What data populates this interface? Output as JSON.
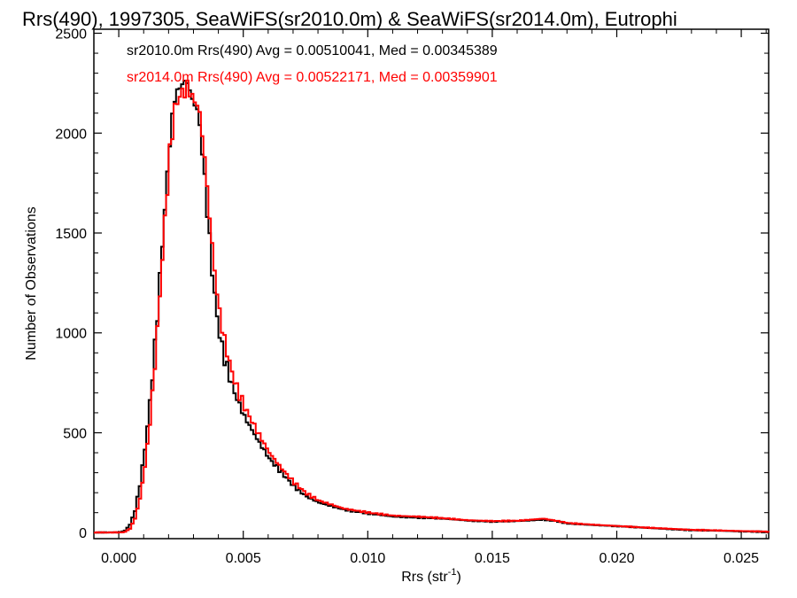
{
  "chart_data": {
    "type": "line",
    "title": "Rrs(490), 1997305, SeaWiFS(sr2010.0m) & SeaWiFS(sr2014.0m), Eutrophi",
    "xlabel": "Rrs (str",
    "xlabel_sup": "-1",
    "xlabel_tail": ")",
    "ylabel": "Number of Observations",
    "xlim": [
      -0.001,
      0.0261
    ],
    "ylim": [
      -30,
      2520
    ],
    "xticks": [
      0.0,
      0.005,
      0.01,
      0.015,
      0.02,
      0.025
    ],
    "xtick_labels": [
      "0.000",
      "0.005",
      "0.010",
      "0.015",
      "0.020",
      "0.025"
    ],
    "yticks": [
      0,
      500,
      1000,
      1500,
      2000,
      2500
    ],
    "ytick_labels": [
      "0",
      "500",
      "1000",
      "1500",
      "2000",
      "2500"
    ],
    "grid": false,
    "legend_position": "top-left",
    "series": [
      {
        "name": "sr2010.0m",
        "color": "#000000",
        "legend": "sr2010.0m Rrs(490) Avg = 0.00510041, Med = 0.00345389",
        "x": [
          -0.001,
          0.0,
          0.0002,
          0.0004,
          0.0006,
          0.0008,
          0.001,
          0.0012,
          0.0014,
          0.0016,
          0.0018,
          0.002,
          0.0022,
          0.0024,
          0.0026,
          0.0027,
          0.0028,
          0.0029,
          0.003,
          0.0031,
          0.0032,
          0.0034,
          0.0036,
          0.0038,
          0.004,
          0.0042,
          0.0044,
          0.0046,
          0.0048,
          0.005,
          0.0055,
          0.006,
          0.0065,
          0.007,
          0.0075,
          0.008,
          0.009,
          0.01,
          0.011,
          0.012,
          0.013,
          0.014,
          0.015,
          0.016,
          0.017,
          0.0175,
          0.018,
          0.019,
          0.02,
          0.021,
          0.022,
          0.023,
          0.024,
          0.025,
          0.026
        ],
        "y": [
          0,
          2,
          10,
          40,
          110,
          240,
          420,
          650,
          930,
          1270,
          1620,
          1960,
          2180,
          2230,
          2260,
          2250,
          2220,
          2160,
          2150,
          2110,
          2040,
          1770,
          1460,
          1180,
          990,
          870,
          780,
          700,
          640,
          580,
          470,
          370,
          300,
          230,
          180,
          150,
          115,
          95,
          80,
          75,
          70,
          60,
          55,
          58,
          65,
          58,
          45,
          38,
          32,
          25,
          18,
          12,
          10,
          6,
          4
        ]
      },
      {
        "name": "sr2014.0m",
        "color": "#ff0000",
        "legend": "sr2014.0m Rrs(490) Avg = 0.00522171, Med = 0.00359901",
        "x": [
          -0.001,
          0.0,
          0.0002,
          0.0004,
          0.0006,
          0.0008,
          0.001,
          0.0012,
          0.0014,
          0.0016,
          0.0018,
          0.002,
          0.0022,
          0.0024,
          0.0026,
          0.0027,
          0.0028,
          0.0029,
          0.003,
          0.0031,
          0.0032,
          0.0034,
          0.0036,
          0.0038,
          0.004,
          0.0042,
          0.0044,
          0.0046,
          0.0048,
          0.005,
          0.0055,
          0.006,
          0.0065,
          0.007,
          0.0075,
          0.008,
          0.009,
          0.01,
          0.011,
          0.012,
          0.013,
          0.014,
          0.015,
          0.016,
          0.017,
          0.0175,
          0.018,
          0.019,
          0.02,
          0.021,
          0.022,
          0.023,
          0.024,
          0.025,
          0.026
        ],
        "y": [
          0,
          1,
          4,
          20,
          70,
          170,
          330,
          550,
          840,
          1190,
          1560,
          1900,
          2120,
          2190,
          2210,
          2230,
          2210,
          2180,
          2160,
          2140,
          2100,
          1880,
          1580,
          1310,
          1100,
          960,
          850,
          760,
          690,
          630,
          510,
          400,
          320,
          250,
          195,
          160,
          120,
          100,
          85,
          80,
          72,
          62,
          58,
          60,
          70,
          60,
          48,
          40,
          33,
          26,
          20,
          14,
          11,
          8,
          5
        ]
      }
    ]
  }
}
